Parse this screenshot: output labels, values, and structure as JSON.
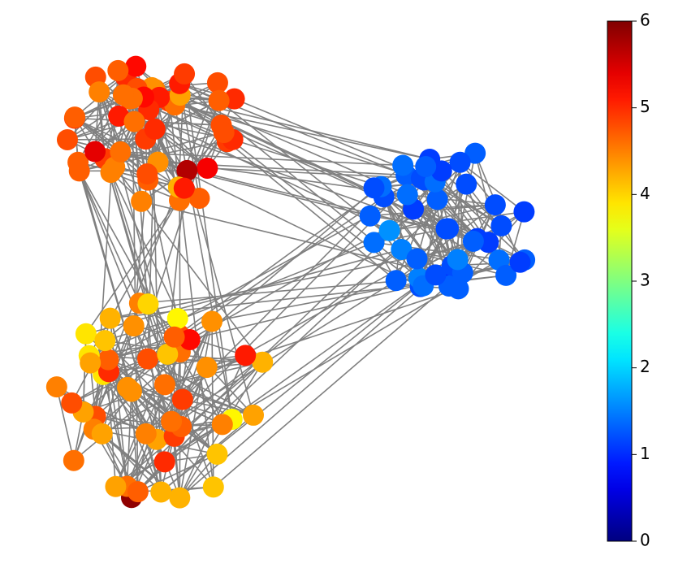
{
  "chart_data": {
    "type": "network",
    "series": [
      {
        "values": [
          4.6,
          4.8,
          5.0,
          4.7,
          5.2,
          4.5,
          4.9,
          5.1,
          4.6,
          4.8,
          5.3,
          4.4,
          4.7,
          5.0,
          4.9,
          4.6,
          5.7,
          4.5,
          4.8,
          5.1,
          4.7,
          4.3,
          4.9,
          5.0,
          4.6,
          4.8,
          5.2,
          4.5,
          4.7,
          4.9,
          4.4,
          5.0,
          4.8,
          4.6,
          5.1,
          4.7,
          4.5,
          4.9,
          5.4,
          4.6,
          4.8,
          4.2,
          4.7,
          5.0,
          4.6,
          4.9,
          4.5,
          4.8,
          5.1,
          4.7
        ]
      },
      {
        "values": [
          1.2,
          1.3,
          1.1,
          1.4,
          1.2,
          1.3,
          1.5,
          1.2,
          1.1,
          1.3,
          1.4,
          1.2,
          1.0,
          1.3,
          1.2,
          1.4,
          1.3,
          1.1,
          1.2,
          1.5,
          1.3,
          1.2,
          1.4,
          1.1,
          1.3,
          1.2,
          1.6,
          1.3,
          1.2,
          1.4,
          1.1,
          1.3,
          1.2,
          1.4,
          1.3,
          1.2,
          1.1,
          1.3,
          1.5,
          1.2,
          1.3,
          1.4,
          1.2,
          1.1,
          1.3
        ]
      },
      {
        "values": [
          4.3,
          4.6,
          4.1,
          4.8,
          4.4,
          3.9,
          4.5,
          5.0,
          4.2,
          4.7,
          4.4,
          3.8,
          4.6,
          4.9,
          4.3,
          4.1,
          5.9,
          4.5,
          4.8,
          4.2,
          4.6,
          3.9,
          4.4,
          5.1,
          4.3,
          4.7,
          4.0,
          4.5,
          4.9,
          4.2,
          4.6,
          4.3,
          3.8,
          4.8,
          4.4,
          4.1,
          4.7,
          5.0,
          4.3,
          4.5,
          3.9,
          4.6,
          4.2,
          4.8,
          4.4,
          5.2,
          4.1,
          4.5,
          4.3,
          4.7
        ]
      }
    ],
    "clim": [
      0,
      6
    ],
    "colorbar_ticks": [
      0,
      1,
      2,
      3,
      4,
      5,
      6
    ],
    "colormap": "jet",
    "edge_color": "#808080"
  }
}
